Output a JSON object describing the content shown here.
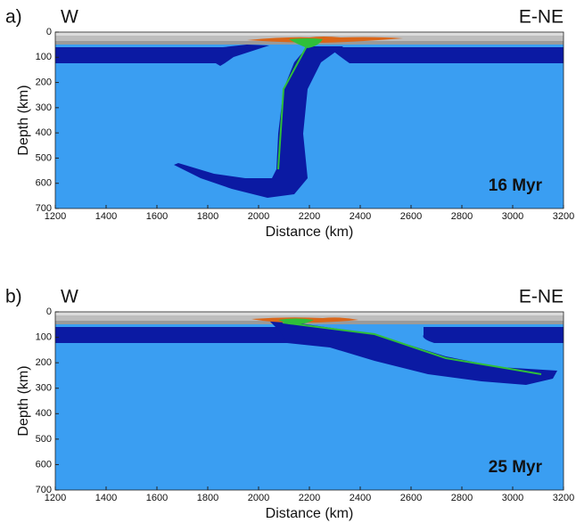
{
  "panels": [
    {
      "label": "a)",
      "left_label": "W",
      "right_label": "E-NE",
      "annotation": "16 Myr",
      "xlabel": "Distance (km)",
      "ylabel": "Depth (km)",
      "xlim": [
        1200,
        3200
      ],
      "ylim": [
        0,
        700
      ],
      "xticks": [
        1200,
        1400,
        1600,
        1800,
        2000,
        2200,
        2400,
        2600,
        2800,
        3000,
        3200
      ],
      "yticks": [
        0,
        100,
        200,
        300,
        400,
        500,
        600,
        700
      ]
    },
    {
      "label": "b)",
      "left_label": "W",
      "right_label": "E-NE",
      "annotation": "25 Myr",
      "xlabel": "Distance (km)",
      "ylabel": "Depth (km)",
      "xlim": [
        1200,
        3200
      ],
      "ylim": [
        0,
        700
      ],
      "xticks": [
        1200,
        1400,
        1600,
        1800,
        2000,
        2200,
        2400,
        2600,
        2800,
        3000,
        3200
      ],
      "yticks": [
        0,
        100,
        200,
        300,
        400,
        500,
        600,
        700
      ]
    }
  ]
}
